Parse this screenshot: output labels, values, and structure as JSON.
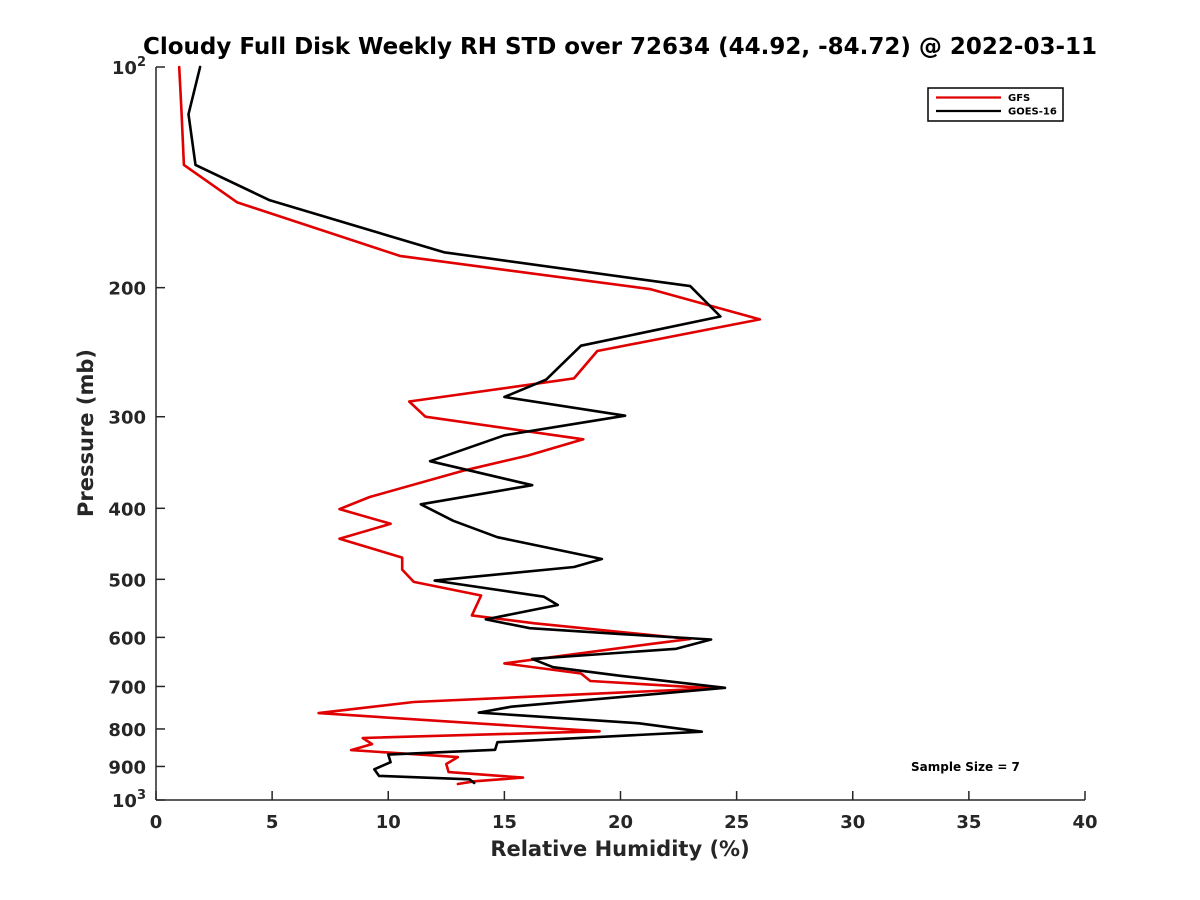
{
  "chart_data": {
    "type": "line",
    "title": "Cloudy Full Disk Weekly RH STD over 72634 (44.92, -84.72) @ 2022-03-11",
    "xlabel": "Relative Humidity (%)",
    "ylabel": "Pressure (mb)",
    "xlim": [
      0,
      40
    ],
    "ylim": [
      100,
      1000
    ],
    "yscale": "log",
    "y_reversed": true,
    "grid": false,
    "legend_position": "top-right",
    "annotation": "Sample Size = 7",
    "x_ticks": [
      0,
      5,
      10,
      15,
      20,
      25,
      30,
      35,
      40
    ],
    "y_ticks": [
      {
        "value": 100,
        "label": "10",
        "sup": "2"
      },
      {
        "value": 200,
        "label": "200"
      },
      {
        "value": 300,
        "label": "300"
      },
      {
        "value": 400,
        "label": "400"
      },
      {
        "value": 500,
        "label": "500"
      },
      {
        "value": 600,
        "label": "600"
      },
      {
        "value": 700,
        "label": "700"
      },
      {
        "value": 800,
        "label": "800"
      },
      {
        "value": 900,
        "label": "900"
      },
      {
        "value": 1000,
        "label": "10",
        "sup": "3"
      }
    ],
    "series": [
      {
        "name": "GFS",
        "color": "#e00000",
        "points": [
          [
            1.0,
            100
          ],
          [
            1.1,
            115
          ],
          [
            1.2,
            136
          ],
          [
            3.5,
            153
          ],
          [
            10.5,
            181
          ],
          [
            21.3,
            201
          ],
          [
            26.0,
            221
          ],
          [
            19.0,
            244
          ],
          [
            18.0,
            266
          ],
          [
            10.9,
            286
          ],
          [
            11.6,
            300
          ],
          [
            18.4,
            322
          ],
          [
            16.0,
            339
          ],
          [
            13.3,
            355
          ],
          [
            9.2,
            386
          ],
          [
            7.9,
            401
          ],
          [
            10.1,
            420
          ],
          [
            7.9,
            440
          ],
          [
            10.6,
            467
          ],
          [
            10.6,
            485
          ],
          [
            11.1,
            504
          ],
          [
            14.0,
            526
          ],
          [
            13.6,
            560
          ],
          [
            16.3,
            574
          ],
          [
            23.0,
            603
          ],
          [
            21.4,
            612
          ],
          [
            15.0,
            651
          ],
          [
            18.3,
            672
          ],
          [
            18.7,
            688
          ],
          [
            24.0,
            704
          ],
          [
            11.1,
            735
          ],
          [
            7.0,
            761
          ],
          [
            19.1,
            806
          ],
          [
            8.9,
            823
          ],
          [
            9.3,
            839
          ],
          [
            8.4,
            855
          ],
          [
            13.0,
            874
          ],
          [
            12.5,
            893
          ],
          [
            12.6,
            916
          ],
          [
            15.8,
            932
          ],
          [
            13.7,
            943
          ],
          [
            13.0,
            951
          ]
        ]
      },
      {
        "name": "GOES-16",
        "color": "#000000",
        "points": [
          [
            1.9,
            100
          ],
          [
            1.4,
            116
          ],
          [
            1.7,
            136
          ],
          [
            4.9,
            152
          ],
          [
            12.4,
            179
          ],
          [
            23.0,
            199
          ],
          [
            24.3,
            219
          ],
          [
            18.3,
            240
          ],
          [
            16.8,
            267
          ],
          [
            15.0,
            282
          ],
          [
            20.2,
            299
          ],
          [
            15.0,
            318
          ],
          [
            11.8,
            345
          ],
          [
            16.2,
            372
          ],
          [
            11.4,
            395
          ],
          [
            12.8,
            416
          ],
          [
            14.7,
            438
          ],
          [
            19.2,
            469
          ],
          [
            18.0,
            481
          ],
          [
            12.0,
            502
          ],
          [
            16.7,
            528
          ],
          [
            17.3,
            542
          ],
          [
            14.2,
            567
          ],
          [
            16.1,
            583
          ],
          [
            20.1,
            594
          ],
          [
            23.9,
            604
          ],
          [
            22.4,
            622
          ],
          [
            16.2,
            642
          ],
          [
            17.1,
            659
          ],
          [
            20.0,
            677
          ],
          [
            24.5,
            703
          ],
          [
            15.3,
            746
          ],
          [
            13.9,
            760
          ],
          [
            20.8,
            786
          ],
          [
            23.5,
            807
          ],
          [
            14.7,
            834
          ],
          [
            14.6,
            854
          ],
          [
            10.0,
            867
          ],
          [
            10.1,
            888
          ],
          [
            9.4,
            908
          ],
          [
            9.6,
            927
          ],
          [
            13.5,
            937
          ],
          [
            13.7,
            948
          ]
        ]
      }
    ]
  }
}
